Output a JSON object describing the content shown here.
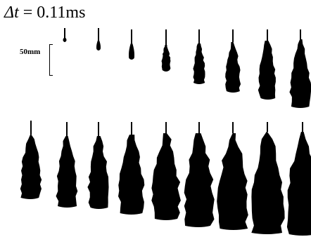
{
  "figure": {
    "time_step_symbol": "Δt",
    "time_step_text": " = 0.11ms",
    "scale_bar_label": "50mm"
  },
  "sprays": {
    "color": "#000000",
    "top_row_count": 8,
    "bottom_row_count": 9
  }
}
